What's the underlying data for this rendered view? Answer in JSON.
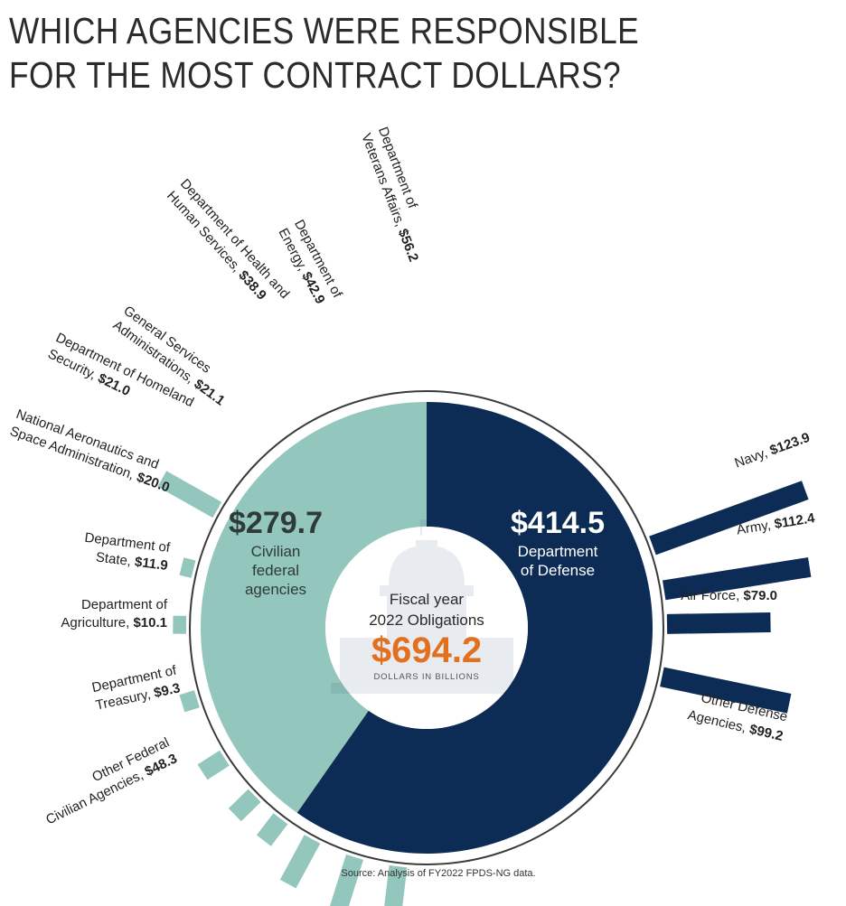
{
  "title_lines": [
    "WHICH AGENCIES WERE RESPONSIBLE",
    "FOR THE MOST CONTRACT DOLLARS?"
  ],
  "colors": {
    "civilian": "#93c6bd",
    "defense": "#0d2c55",
    "total": "#e2701e",
    "text": "#222222",
    "civilian_summary_text": "#2f3b38",
    "defense_summary_text": "#ffffff"
  },
  "icon": "capitol-dome-icon",
  "chart_data": {
    "type": "donut-radial-bar",
    "units": "DOLLARS IN BILLIONS",
    "center": {
      "line1": "Fiscal year",
      "line2": "2022 Obligations",
      "total": "$694.2",
      "units": "DOLLARS IN BILLIONS"
    },
    "segments": [
      {
        "value": 279.7,
        "label": "$279.7",
        "desc_lines": [
          "Civilian",
          "federal",
          "agencies"
        ]
      },
      {
        "value": 414.5,
        "label": "$414.5",
        "desc_lines": [
          "Department",
          "of Defense"
        ]
      }
    ],
    "civilian": [
      {
        "name_lines": [
          "Department of",
          "Veterans Affairs,"
        ],
        "amount": "$56.2",
        "value": 56.2
      },
      {
        "name_lines": [
          "Department of",
          "Energy,"
        ],
        "amount": "$42.9",
        "value": 42.9
      },
      {
        "name_lines": [
          "Department of Health and",
          "Human Services,"
        ],
        "amount": "$38.9",
        "value": 38.9
      },
      {
        "name_lines": [
          "General Services",
          "Administrations,"
        ],
        "amount": "$21.1",
        "value": 21.1
      },
      {
        "name_lines": [
          "Department of Homeland",
          "Security,"
        ],
        "amount": "$21.0",
        "value": 21.0
      },
      {
        "name_lines": [
          "National Aeronautics and",
          "Space Administration,"
        ],
        "amount": "$20.0",
        "value": 20.0
      },
      {
        "name_lines": [
          "Department of",
          "State,"
        ],
        "amount": "$11.9",
        "value": 11.9
      },
      {
        "name_lines": [
          "Department of",
          "Agriculture,"
        ],
        "amount": "$10.1",
        "value": 10.1
      },
      {
        "name_lines": [
          "Department of",
          "Treasury,"
        ],
        "amount": "$9.3",
        "value": 9.3
      },
      {
        "name_lines": [
          "Other Federal",
          "Civilian Agencies,"
        ],
        "amount": "$48.3",
        "value": 48.3
      }
    ],
    "defense": [
      {
        "name_lines": [
          "Navy,"
        ],
        "amount": "$123.9",
        "value": 123.9
      },
      {
        "name_lines": [
          "Army,"
        ],
        "amount": "$112.4",
        "value": 112.4
      },
      {
        "name_lines": [
          "Air Force,"
        ],
        "amount": "$79.0",
        "value": 79.0
      },
      {
        "name_lines": [
          "Other Defense",
          "Agencies,"
        ],
        "amount": "$99.2",
        "value": 99.2
      }
    ]
  },
  "source": "Source: Analysis of FY2022 FPDS-NG data."
}
